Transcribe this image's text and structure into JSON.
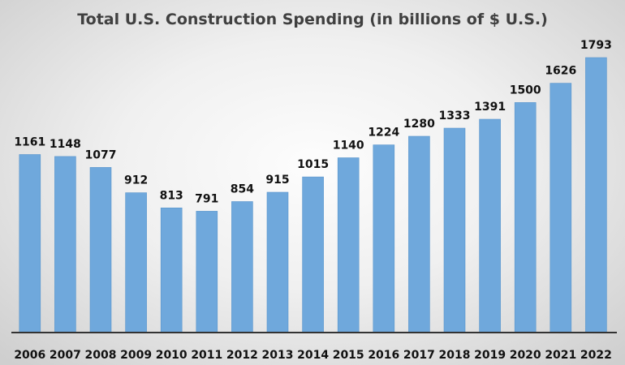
{
  "chart_data": {
    "type": "bar",
    "title": "Total U.S. Construction Spending (in billions of $ U.S.)",
    "categories": [
      "2006",
      "2007",
      "2008",
      "2009",
      "2010",
      "2011",
      "2012",
      "2013",
      "2014",
      "2015",
      "2016",
      "2017",
      "2018",
      "2019",
      "2020",
      "2021",
      "2022"
    ],
    "values": [
      1161,
      1148,
      1077,
      912,
      813,
      791,
      854,
      915,
      1015,
      1140,
      1224,
      1280,
      1333,
      1391,
      1500,
      1626,
      1793
    ],
    "data_labels": [
      "1161",
      "1148",
      "1077",
      "912",
      "813",
      "791",
      "854",
      "915",
      "1015",
      "1140",
      "1224",
      "1280",
      "1333",
      "1391",
      "1500",
      "1626",
      "1793"
    ],
    "xlabel": "",
    "ylabel": "",
    "ylim": [
      0,
      1793
    ],
    "grid": false,
    "legend": "none",
    "colors": {
      "bar": "#6fa8dc",
      "bar_stroke": "#5b96cc",
      "axis": "#333333"
    }
  }
}
